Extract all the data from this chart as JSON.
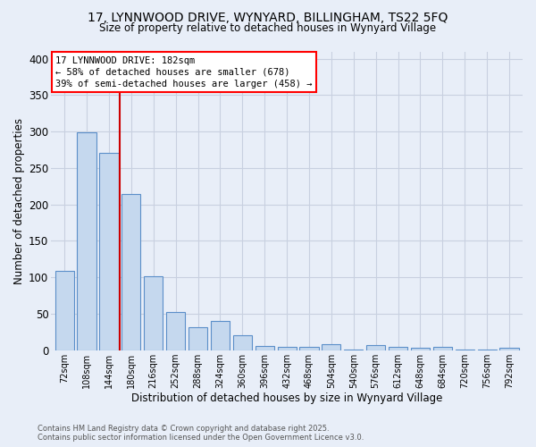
{
  "title_line1": "17, LYNNWOOD DRIVE, WYNYARD, BILLINGHAM, TS22 5FQ",
  "title_line2": "Size of property relative to detached houses in Wynyard Village",
  "xlabel": "Distribution of detached houses by size in Wynyard Village",
  "ylabel": "Number of detached properties",
  "categories": [
    "72sqm",
    "108sqm",
    "144sqm",
    "180sqm",
    "216sqm",
    "252sqm",
    "288sqm",
    "324sqm",
    "360sqm",
    "396sqm",
    "432sqm",
    "468sqm",
    "504sqm",
    "540sqm",
    "576sqm",
    "612sqm",
    "648sqm",
    "684sqm",
    "720sqm",
    "756sqm",
    "792sqm"
  ],
  "values": [
    109,
    299,
    271,
    214,
    101,
    52,
    32,
    40,
    20,
    6,
    5,
    4,
    8,
    1,
    7,
    4,
    3,
    4,
    1,
    1,
    3
  ],
  "bar_color": "#c5d8ee",
  "bar_edge_color": "#5b8fc9",
  "annotation_text_line1": "17 LYNNWOOD DRIVE: 182sqm",
  "annotation_text_line2": "← 58% of detached houses are smaller (678)",
  "annotation_text_line3": "39% of semi-detached houses are larger (458) →",
  "vline_color": "#cc0000",
  "footnote_line1": "Contains HM Land Registry data © Crown copyright and database right 2025.",
  "footnote_line2": "Contains public sector information licensed under the Open Government Licence v3.0.",
  "ylim": [
    0,
    410
  ],
  "yticks": [
    0,
    50,
    100,
    150,
    200,
    250,
    300,
    350,
    400
  ],
  "bg_color": "#e8eef8",
  "grid_color": "#c8d0e0",
  "vline_index": 2.5
}
